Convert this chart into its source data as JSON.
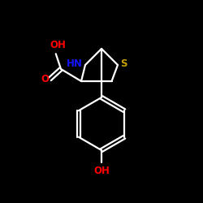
{
  "background_color": "#000000",
  "bond_color": "#ffffff",
  "N_color": "#1414ff",
  "S_color": "#c8a000",
  "O_color": "#ff0000",
  "label_NH": "HN",
  "label_S": "S",
  "label_OH_top": "OH",
  "label_O": "O",
  "label_OH_bot": "OH",
  "figsize": [
    2.5,
    2.5
  ],
  "dpi": 100
}
